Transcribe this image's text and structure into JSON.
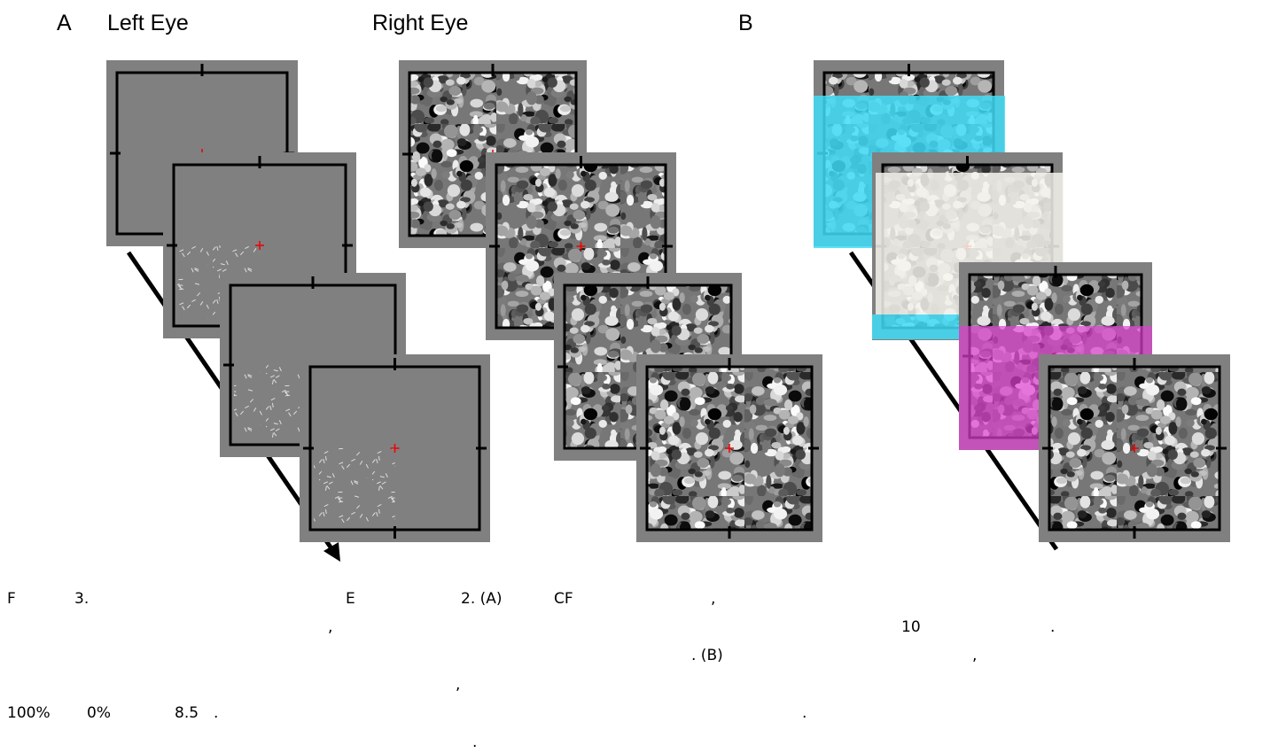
{
  "figure": {
    "panel_a": "A",
    "left_eye": "Left Eye",
    "right_eye": "Right Eye",
    "panel_b": "B"
  },
  "caption": {
    "lines": [
      [
        "F",
        "3.",
        "E",
        "2. (A)",
        "CF",
        ","
      ],
      [
        ",",
        "10",
        "."
      ],
      [
        ". (B)",
        ","
      ],
      [
        ","
      ],
      [
        "100%",
        "0%",
        "8.5",
        ".",
        "."
      ],
      [
        "."
      ]
    ]
  }
}
